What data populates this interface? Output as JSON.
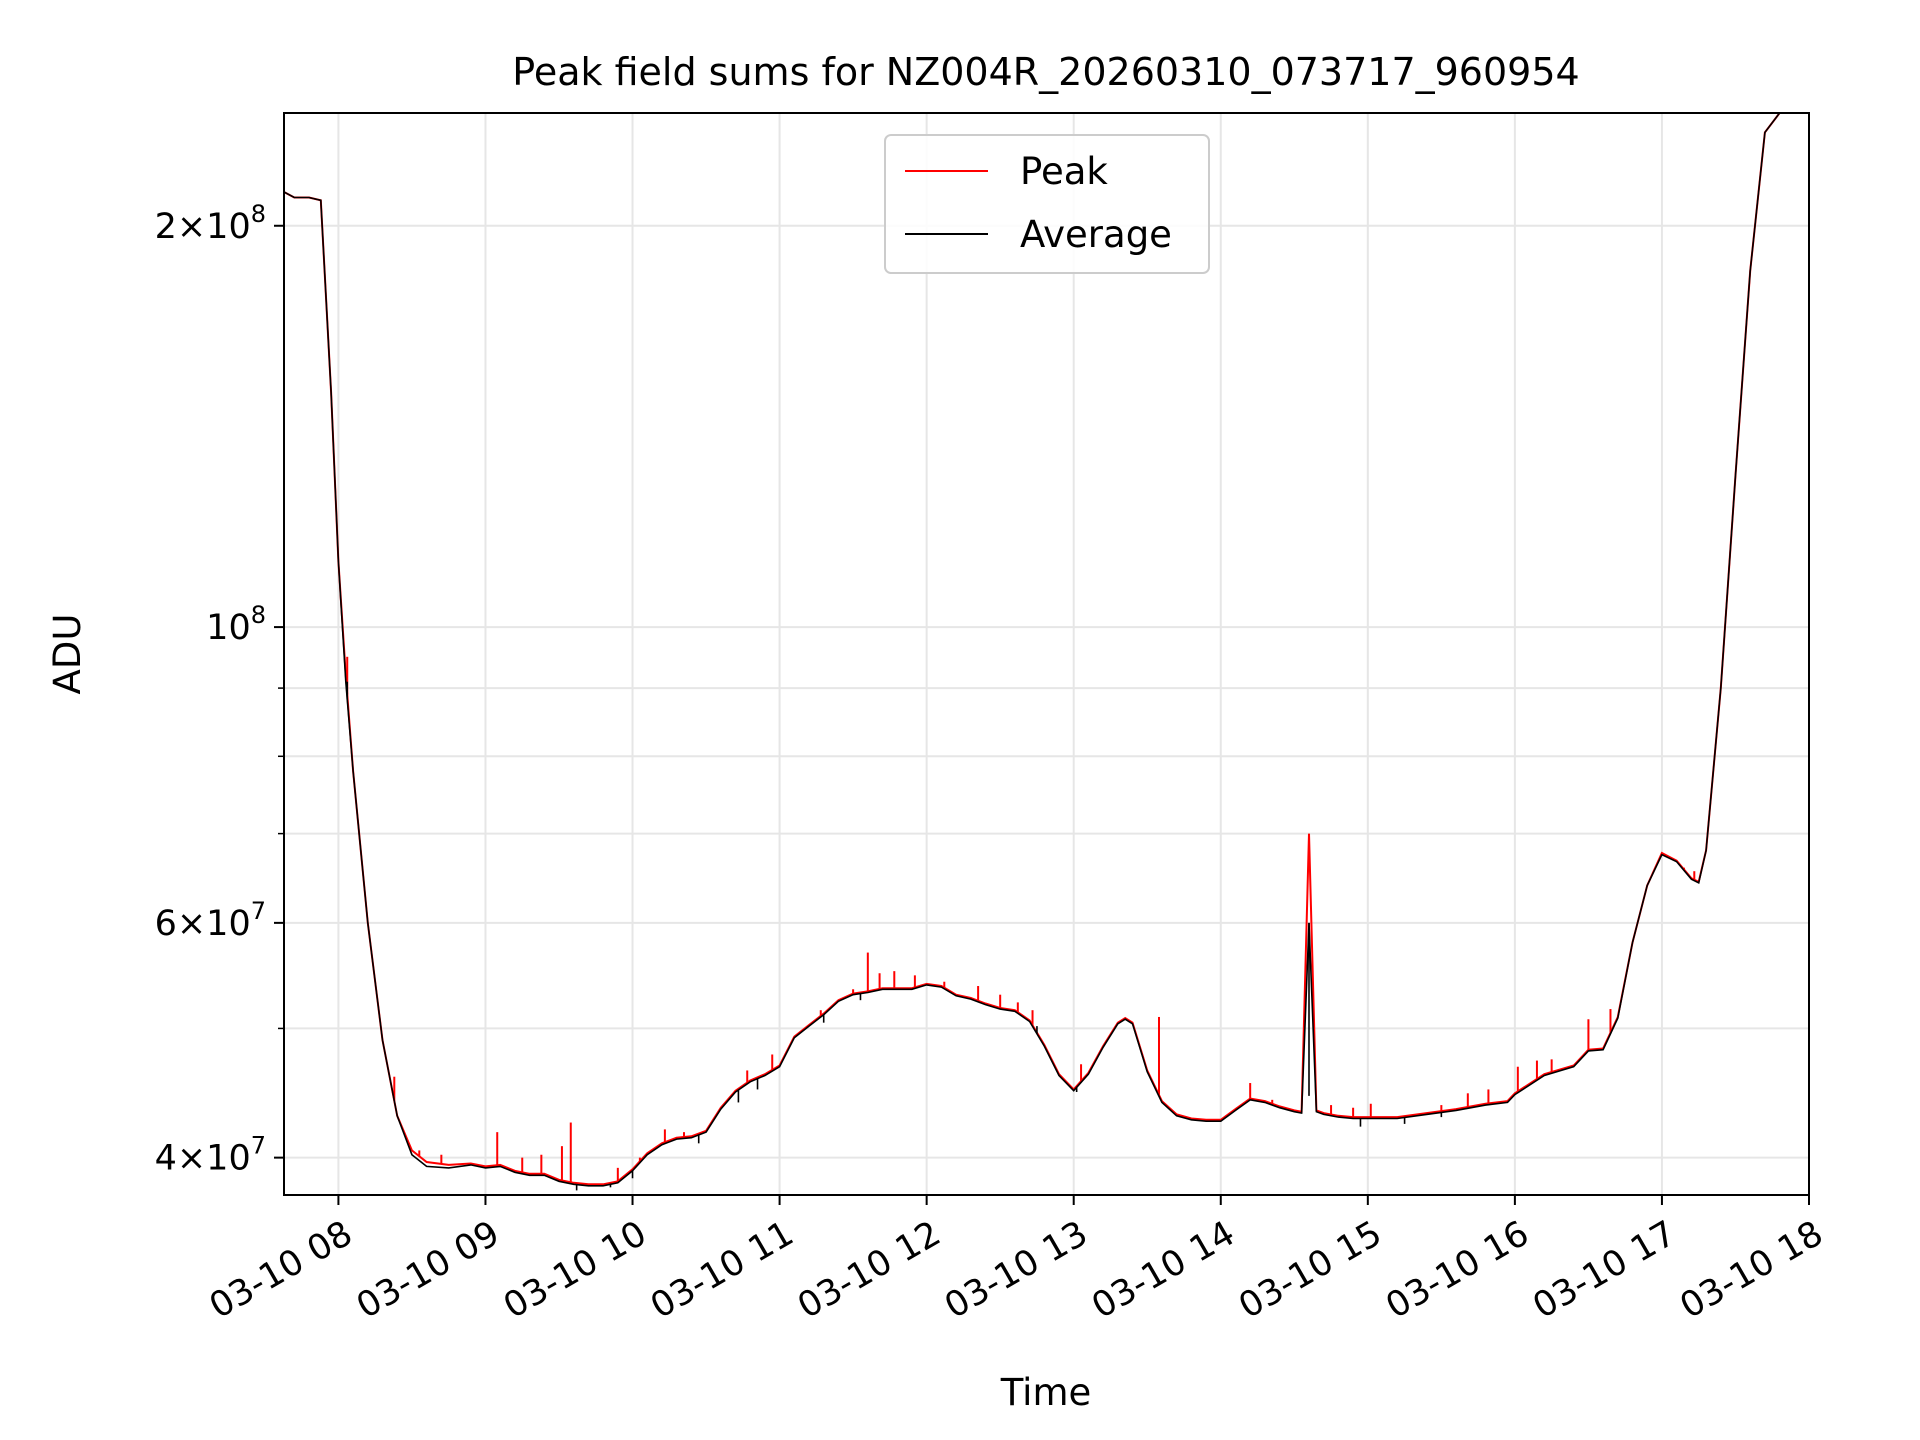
{
  "chart_data": {
    "type": "line",
    "title": "Peak field sums for NZ004R_20260310_073717_960954",
    "xlabel": "Time",
    "ylabel": "ADU",
    "y_scale": "log",
    "grid": true,
    "legend_position": "upper-center",
    "x_unit": "hours after 03-10 00:00",
    "xlim": [
      7.63,
      18.0
    ],
    "ylim": [
      37500000,
      243000000
    ],
    "x_ticks": [
      8,
      9,
      10,
      11,
      12,
      13,
      14,
      15,
      16,
      17,
      18
    ],
    "x_tick_labels": [
      "03-10 08",
      "03-10 09",
      "03-10 10",
      "03-10 11",
      "03-10 12",
      "03-10 13",
      "03-10 14",
      "03-10 15",
      "03-10 16",
      "03-10 17",
      "03-10 18"
    ],
    "y_major_ticks": [
      {
        "value": 40000000,
        "mantissa": "4",
        "exponent": "7"
      },
      {
        "value": 60000000,
        "mantissa": "6",
        "exponent": "7"
      },
      {
        "value": 100000000,
        "mantissa": "",
        "exponent": "8"
      },
      {
        "value": 200000000,
        "mantissa": "2",
        "exponent": "8"
      }
    ],
    "y_minor_ticks": [
      50000000,
      70000000,
      80000000,
      90000000
    ],
    "series": [
      {
        "name": "Peak",
        "color": "#ff0000",
        "x": [
          7.63,
          7.7,
          7.8,
          7.88,
          7.95,
          8.0,
          8.05,
          8.1,
          8.2,
          8.3,
          8.4,
          8.5,
          8.6,
          8.75,
          8.9,
          9.0,
          9.1,
          9.2,
          9.3,
          9.4,
          9.5,
          9.6,
          9.7,
          9.8,
          9.9,
          10.0,
          10.1,
          10.2,
          10.3,
          10.4,
          10.5,
          10.6,
          10.7,
          10.8,
          10.9,
          11.0,
          11.1,
          11.2,
          11.3,
          11.4,
          11.5,
          11.6,
          11.7,
          11.8,
          11.9,
          12.0,
          12.1,
          12.2,
          12.3,
          12.4,
          12.5,
          12.6,
          12.7,
          12.8,
          12.9,
          13.0,
          13.1,
          13.2,
          13.3,
          13.35,
          13.4,
          13.5,
          13.6,
          13.7,
          13.8,
          13.9,
          14.0,
          14.1,
          14.2,
          14.3,
          14.4,
          14.5,
          14.55,
          14.6,
          14.65,
          14.7,
          14.8,
          14.9,
          15.0,
          15.2,
          15.4,
          15.6,
          15.8,
          15.95,
          16.0,
          16.2,
          16.4,
          16.5,
          16.6,
          16.7,
          16.8,
          16.9,
          17.0,
          17.1,
          17.2,
          17.25,
          17.3,
          17.4,
          17.5,
          17.6,
          17.7,
          17.8,
          17.85
        ],
        "y": [
          212000000,
          210000000,
          210000000,
          209000000,
          150000000,
          112000000,
          92000000,
          78000000,
          60000000,
          49000000,
          43000000,
          40500000,
          39700000,
          39500000,
          39600000,
          39400000,
          39500000,
          39100000,
          38900000,
          38900000,
          38500000,
          38300000,
          38200000,
          38200000,
          38400000,
          39200000,
          40300000,
          41000000,
          41400000,
          41500000,
          41900000,
          43600000,
          44900000,
          45700000,
          46200000,
          46900000,
          49300000,
          50300000,
          51300000,
          52500000,
          53100000,
          53300000,
          53600000,
          53600000,
          53600000,
          54000000,
          53800000,
          53000000,
          52700000,
          52200000,
          51800000,
          51600000,
          50700000,
          48600000,
          46200000,
          45000000,
          46300000,
          48500000,
          50500000,
          50900000,
          50500000,
          46500000,
          44100000,
          43100000,
          42800000,
          42700000,
          42700000,
          43500000,
          44300000,
          44100000,
          43700000,
          43400000,
          43300000,
          70000000,
          43400000,
          43200000,
          43000000,
          42900000,
          42900000,
          42900000,
          43200000,
          43500000,
          43900000,
          44100000,
          44700000,
          46200000,
          46900000,
          48200000,
          48300000,
          51000000,
          58000000,
          64000000,
          67700000,
          66800000,
          64800000,
          64400000,
          68000000,
          90000000,
          130000000,
          185000000,
          235000000,
          243000000,
          243000000
        ],
        "spikes": [
          [
            8.06,
            95000000
          ],
          [
            8.38,
            46000000
          ],
          [
            8.55,
            40500000
          ],
          [
            8.7,
            40200000
          ],
          [
            9.08,
            41800000
          ],
          [
            9.25,
            40000000
          ],
          [
            9.38,
            40200000
          ],
          [
            9.52,
            40800000
          ],
          [
            9.58,
            42500000
          ],
          [
            9.9,
            39300000
          ],
          [
            10.05,
            40000000
          ],
          [
            10.22,
            42000000
          ],
          [
            10.35,
            41800000
          ],
          [
            10.78,
            46500000
          ],
          [
            10.95,
            47800000
          ],
          [
            11.28,
            51600000
          ],
          [
            11.5,
            53500000
          ],
          [
            11.6,
            57000000
          ],
          [
            11.68,
            55000000
          ],
          [
            11.78,
            55200000
          ],
          [
            11.92,
            54800000
          ],
          [
            12.12,
            54200000
          ],
          [
            12.35,
            53800000
          ],
          [
            12.5,
            53000000
          ],
          [
            12.62,
            52300000
          ],
          [
            12.72,
            51600000
          ],
          [
            13.05,
            47000000
          ],
          [
            13.15,
            47400000
          ],
          [
            13.58,
            51000000
          ],
          [
            14.2,
            45500000
          ],
          [
            14.35,
            44200000
          ],
          [
            14.75,
            43800000
          ],
          [
            14.9,
            43600000
          ],
          [
            15.02,
            43900000
          ],
          [
            15.5,
            43800000
          ],
          [
            15.68,
            44700000
          ],
          [
            15.82,
            45000000
          ],
          [
            16.02,
            46800000
          ],
          [
            16.15,
            47300000
          ],
          [
            16.25,
            47400000
          ],
          [
            16.5,
            50800000
          ],
          [
            16.65,
            51700000
          ],
          [
            17.15,
            66000000
          ],
          [
            17.22,
            65600000
          ]
        ]
      },
      {
        "name": "Average",
        "color": "#000000",
        "x": [
          7.63,
          7.7,
          7.8,
          7.88,
          7.95,
          8.0,
          8.05,
          8.1,
          8.2,
          8.3,
          8.4,
          8.5,
          8.6,
          8.75,
          8.9,
          9.0,
          9.1,
          9.2,
          9.3,
          9.4,
          9.5,
          9.6,
          9.7,
          9.8,
          9.9,
          10.0,
          10.1,
          10.2,
          10.3,
          10.4,
          10.5,
          10.6,
          10.7,
          10.8,
          10.9,
          11.0,
          11.1,
          11.2,
          11.3,
          11.4,
          11.5,
          11.6,
          11.7,
          11.8,
          11.9,
          12.0,
          12.1,
          12.2,
          12.3,
          12.4,
          12.5,
          12.6,
          12.7,
          12.8,
          12.9,
          13.0,
          13.1,
          13.2,
          13.3,
          13.35,
          13.4,
          13.5,
          13.6,
          13.7,
          13.8,
          13.9,
          14.0,
          14.1,
          14.2,
          14.3,
          14.4,
          14.5,
          14.55,
          14.6,
          14.65,
          14.7,
          14.8,
          14.9,
          15.0,
          15.2,
          15.4,
          15.6,
          15.8,
          15.95,
          16.0,
          16.2,
          16.4,
          16.5,
          16.6,
          16.7,
          16.8,
          16.9,
          17.0,
          17.1,
          17.2,
          17.25,
          17.3,
          17.4,
          17.5,
          17.6,
          17.7,
          17.8,
          17.85
        ],
        "y": [
          212000000,
          210000000,
          210000000,
          209000000,
          150000000,
          112000000,
          91000000,
          78000000,
          60000000,
          49000000,
          43000000,
          40200000,
          39400000,
          39300000,
          39500000,
          39300000,
          39400000,
          39000000,
          38800000,
          38800000,
          38400000,
          38200000,
          38100000,
          38100000,
          38300000,
          39100000,
          40200000,
          40900000,
          41300000,
          41400000,
          41800000,
          43500000,
          44800000,
          45600000,
          46100000,
          46800000,
          49200000,
          50200000,
          51200000,
          52400000,
          53000000,
          53200000,
          53500000,
          53500000,
          53500000,
          53900000,
          53700000,
          52900000,
          52600000,
          52100000,
          51700000,
          51500000,
          50600000,
          48500000,
          46100000,
          44900000,
          46200000,
          48400000,
          50400000,
          50800000,
          50400000,
          46400000,
          44000000,
          43000000,
          42700000,
          42600000,
          42600000,
          43400000,
          44200000,
          44000000,
          43600000,
          43300000,
          43200000,
          60000000,
          43300000,
          43100000,
          42900000,
          42800000,
          42800000,
          42800000,
          43100000,
          43400000,
          43800000,
          44000000,
          44600000,
          46100000,
          46800000,
          48100000,
          48200000,
          50900000,
          58000000,
          64000000,
          67500000,
          66700000,
          64700000,
          64300000,
          68000000,
          90000000,
          130000000,
          185000000,
          235000000,
          243000000,
          243000000
        ],
        "dips": [
          [
            8.06,
            91000000
          ],
          [
            9.62,
            37800000
          ],
          [
            9.85,
            38000000
          ],
          [
            10.0,
            38600000
          ],
          [
            10.45,
            41000000
          ],
          [
            10.72,
            44000000
          ],
          [
            10.85,
            45000000
          ],
          [
            11.3,
            50500000
          ],
          [
            11.55,
            52500000
          ],
          [
            12.75,
            50200000
          ],
          [
            13.02,
            44800000
          ],
          [
            14.6,
            44500000
          ],
          [
            14.95,
            42200000
          ],
          [
            15.25,
            42400000
          ],
          [
            15.5,
            42900000
          ]
        ]
      }
    ]
  }
}
